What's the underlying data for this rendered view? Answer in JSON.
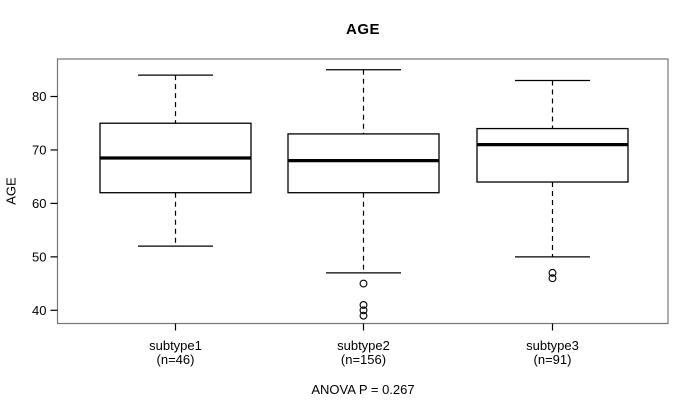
{
  "title": "AGE",
  "chart_data": {
    "type": "boxplot",
    "title": "AGE",
    "ylabel": "AGE",
    "xlabel": "",
    "annotation": "ANOVA P = 0.267",
    "ylim": [
      37,
      87
    ],
    "yticks": [
      40,
      50,
      60,
      70,
      80
    ],
    "grid": false,
    "legend": null,
    "colors": {
      "box_line": "#000000",
      "frame": "#757575",
      "text": "#000000",
      "background": "#ffffff"
    },
    "groups": [
      {
        "label": "subtype1",
        "count_label": "(n=46)",
        "whisker_low": 52,
        "q1": 62,
        "median": 68.5,
        "q3": 75,
        "whisker_high": 84,
        "outliers": []
      },
      {
        "label": "subtype2",
        "count_label": "(n=156)",
        "whisker_low": 47,
        "q1": 62,
        "median": 68,
        "q3": 73,
        "whisker_high": 85,
        "outliers": [
          45,
          41,
          40,
          39
        ]
      },
      {
        "label": "subtype3",
        "count_label": "(n=91)",
        "whisker_low": 50,
        "q1": 64,
        "median": 71,
        "q3": 74,
        "whisker_high": 83,
        "outliers": [
          47,
          46
        ]
      }
    ]
  }
}
